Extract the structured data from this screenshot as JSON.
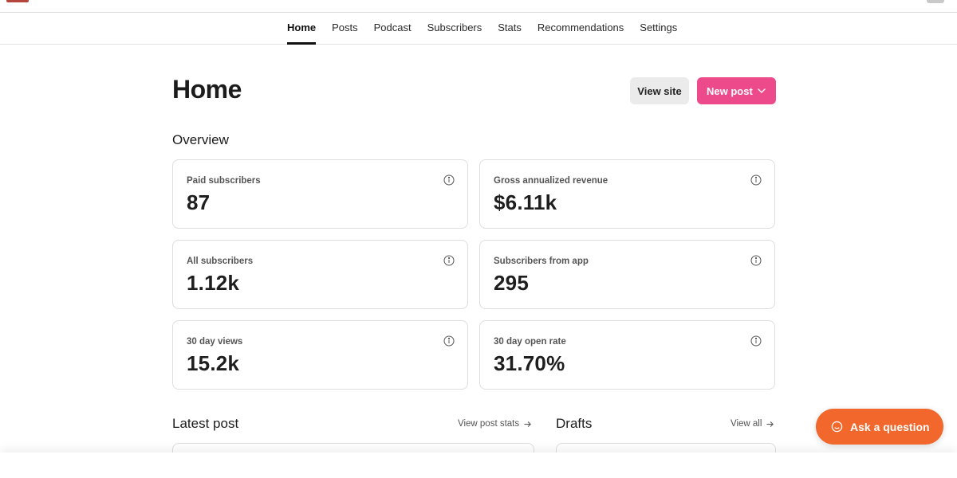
{
  "nav": {
    "tabs": [
      {
        "label": "Home",
        "active": true
      },
      {
        "label": "Posts"
      },
      {
        "label": "Podcast"
      },
      {
        "label": "Subscribers"
      },
      {
        "label": "Stats"
      },
      {
        "label": "Recommendations"
      },
      {
        "label": "Settings"
      }
    ]
  },
  "header": {
    "title": "Home",
    "view_site_label": "View site",
    "new_post_label": "New post"
  },
  "overview": {
    "title": "Overview",
    "cards": [
      {
        "label": "Paid subscribers",
        "value": "87"
      },
      {
        "label": "Gross annualized revenue",
        "value": "$6.11k"
      },
      {
        "label": "All subscribers",
        "value": "1.12k"
      },
      {
        "label": "Subscribers from app",
        "value": "295"
      },
      {
        "label": "30 day views",
        "value": "15.2k"
      },
      {
        "label": "30 day open rate",
        "value": "31.70%"
      }
    ]
  },
  "latest_post": {
    "title": "Latest post",
    "link_label": "View post stats"
  },
  "drafts": {
    "title": "Drafts",
    "link_label": "View all"
  },
  "help": {
    "label": "Ask a question"
  },
  "colors": {
    "accent_pink": "#ec4a8b",
    "help_orange": "#f2672b"
  },
  "icons": {
    "info": "info-circle-icon",
    "arrow": "arrow-right-icon",
    "chevron": "chevron-down-icon",
    "chat": "chat-bubble-icon"
  }
}
